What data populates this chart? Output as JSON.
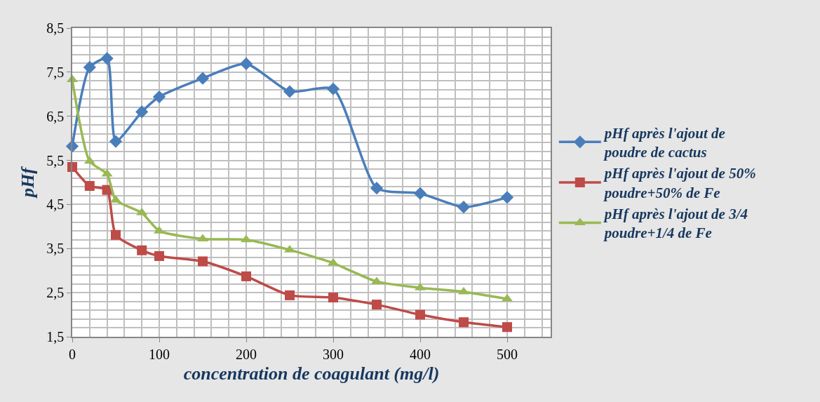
{
  "chart_data": {
    "type": "line",
    "xlabel": "concentration de coagulant (mg/l)",
    "ylabel": "pHf",
    "x": [
      0,
      20,
      40,
      50,
      80,
      100,
      150,
      200,
      250,
      300,
      350,
      400,
      450,
      500
    ],
    "series": [
      {
        "name": "pHf après l'ajout de poudre de cactus",
        "color": "#4a7ebb",
        "marker": "diamond",
        "values": [
          5.82,
          7.61,
          7.81,
          5.93,
          6.6,
          6.94,
          7.36,
          7.69,
          7.06,
          7.12,
          4.87,
          4.75,
          4.44,
          4.66
        ]
      },
      {
        "name": "pHf après l'ajout de 50% poudre+50% de Fe",
        "color": "#be4b48",
        "marker": "square",
        "values": [
          5.35,
          4.92,
          4.83,
          3.81,
          3.46,
          3.33,
          3.21,
          2.87,
          2.44,
          2.39,
          2.23,
          2.0,
          1.83,
          1.72
        ]
      },
      {
        "name": "pHf après l'ajout de 3/4 poudre+1/4 de Fe",
        "color": "#98b954",
        "marker": "triangle",
        "values": [
          7.33,
          5.48,
          5.19,
          4.6,
          4.31,
          3.9,
          3.72,
          3.7,
          3.47,
          3.17,
          2.75,
          2.61,
          2.52,
          2.36
        ]
      }
    ],
    "xlim": [
      0,
      550
    ],
    "xticks": [
      0,
      100,
      200,
      300,
      400,
      500
    ],
    "ylim": [
      1.5,
      8.5
    ],
    "yticks": [
      {
        "value": 1.5,
        "label": "1,5"
      },
      {
        "value": 2.5,
        "label": "2,5"
      },
      {
        "value": 3.5,
        "label": "3,5"
      },
      {
        "value": 4.5,
        "label": "4,5"
      },
      {
        "value": 5.5,
        "label": "5,5"
      },
      {
        "value": 6.5,
        "label": "6,5"
      },
      {
        "value": 7.5,
        "label": "7,5"
      },
      {
        "value": 8.5,
        "label": "8,5"
      }
    ],
    "grid": true,
    "legend": "right",
    "line_style": "solid"
  }
}
